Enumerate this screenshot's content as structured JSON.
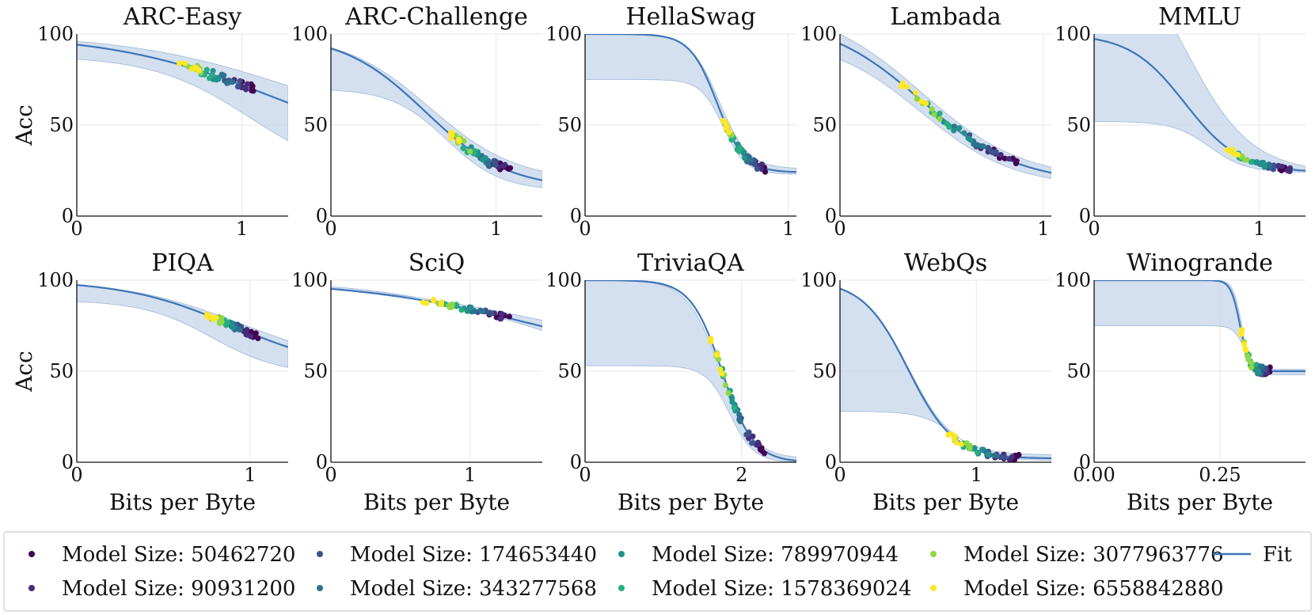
{
  "legend": {
    "entries": [
      {
        "label": "Model Size: 50462720",
        "color": "#440154"
      },
      {
        "label": "Model Size: 90931200",
        "color": "#472d7b"
      },
      {
        "label": "Model Size: 174653440",
        "color": "#3b528b"
      },
      {
        "label": "Model Size: 343277568",
        "color": "#2c728e"
      },
      {
        "label": "Model Size: 789970944",
        "color": "#21918c"
      },
      {
        "label": "Model Size: 1578369024",
        "color": "#27ad81"
      },
      {
        "label": "Model Size: 3077963776",
        "color": "#8fd744"
      },
      {
        "label": "Model Size: 6558842880",
        "color": "#fde725"
      }
    ],
    "fit_label": "Fit",
    "fit_color": "#3c75b8",
    "band_color": "#c6d5ea"
  },
  "chart_data": [
    {
      "type": "scatter",
      "title": "ARC-Easy",
      "xlabel": "",
      "ylabel": "Acc",
      "xlim": [
        0,
        1.28
      ],
      "ylim": [
        0,
        100
      ],
      "xticks": [
        {
          "v": 0,
          "label": "0"
        },
        {
          "v": 1,
          "label": "1"
        }
      ],
      "yticks": [
        0,
        50,
        100
      ],
      "fit": {
        "L": 30,
        "U": 100,
        "c": 1.2,
        "k": 2.0
      },
      "band": {
        "lower": {
          "L": 20,
          "U": 88,
          "c": 1.05,
          "k": 3.4
        },
        "upper": {
          "L": 42,
          "U": 100,
          "c": 1.3,
          "k": 2.0
        }
      },
      "points": {
        "x_range": [
          0.62,
          1.1
        ],
        "y_range": [
          84,
          52
        ],
        "spread": 2.5
      }
    },
    {
      "type": "scatter",
      "title": "ARC-Challenge",
      "xlabel": "",
      "ylabel": "",
      "xlim": [
        0,
        1.28
      ],
      "ylim": [
        0,
        100
      ],
      "xticks": [
        {
          "v": 0,
          "label": "0"
        },
        {
          "v": 1,
          "label": "1"
        }
      ],
      "yticks": [
        0,
        50,
        100
      ],
      "fit": {
        "L": 15,
        "U": 100,
        "c": 0.57,
        "k": 4.0
      },
      "band": {
        "lower": {
          "L": 14,
          "U": 70,
          "c": 0.7,
          "k": 6.0
        },
        "upper": {
          "L": 19,
          "U": 100,
          "c": 0.6,
          "k": 3.8
        }
      },
      "points": {
        "x_range": [
          0.7,
          1.12
        ],
        "y_range": [
          52,
          22
        ],
        "spread": 2.5
      }
    },
    {
      "type": "scatter",
      "title": "HellaSwag",
      "xlabel": "",
      "ylabel": "",
      "xlim": [
        0,
        1.04
      ],
      "ylim": [
        0,
        100
      ],
      "xticks": [
        {
          "v": 0,
          "label": "0"
        },
        {
          "v": 1,
          "label": "1"
        }
      ],
      "yticks": [
        0,
        50,
        100
      ],
      "fit": {
        "L": 24,
        "U": 100,
        "c": 0.65,
        "k": 15.0
      },
      "band": {
        "lower": {
          "L": 23,
          "U": 75,
          "c": 0.68,
          "k": 18.0
        },
        "upper": {
          "L": 26,
          "U": 100,
          "c": 0.66,
          "k": 14.0
        }
      },
      "points": {
        "x_range": [
          0.66,
          0.9
        ],
        "y_range": [
          58,
          30
        ],
        "spread": 2.0
      }
    },
    {
      "type": "scatter",
      "title": "Lambada",
      "xlabel": "",
      "ylabel": "",
      "xlim": [
        0,
        1.04
      ],
      "ylim": [
        0,
        100
      ],
      "xticks": [
        {
          "v": 0,
          "label": "0"
        },
        {
          "v": 1,
          "label": "1"
        }
      ],
      "yticks": [
        0,
        50,
        100
      ],
      "fit": {
        "L": 18,
        "U": 109,
        "c": 0.4,
        "k": 4.2
      },
      "band": {
        "lower": {
          "L": 16,
          "U": 98,
          "c": 0.4,
          "k": 4.4
        },
        "upper": {
          "L": 20,
          "U": 116,
          "c": 0.4,
          "k": 4.0
        }
      },
      "points": {
        "x_range": [
          0.3,
          0.9
        ],
        "y_range": [
          72,
          29
        ],
        "spread": 2.0
      }
    },
    {
      "type": "scatter",
      "title": "MMLU",
      "xlabel": "",
      "ylabel": "",
      "xlim": [
        0,
        1.28
      ],
      "ylim": [
        0,
        100
      ],
      "xticks": [
        {
          "v": 0,
          "label": "0"
        },
        {
          "v": 1,
          "label": "1"
        }
      ],
      "yticks": [
        0,
        50,
        100
      ],
      "fit": {
        "L": 24,
        "U": 100,
        "c": 0.55,
        "k": 6.0
      },
      "band": {
        "lower": {
          "L": 24,
          "U": 52,
          "c": 0.7,
          "k": 9.0
        },
        "upper": {
          "L": 24,
          "U": 160,
          "c": 0.55,
          "k": 5.0
        }
      },
      "points": {
        "x_range": [
          0.75,
          1.25
        ],
        "y_range": [
          40,
          26
        ],
        "spread": 1.3
      }
    },
    {
      "type": "scatter",
      "title": "PIQA",
      "xlabel": "Bits per Byte",
      "ylabel": "Acc",
      "xlim": [
        0,
        1.22
      ],
      "ylim": [
        0,
        100
      ],
      "xticks": [
        {
          "v": 0,
          "label": "0"
        },
        {
          "v": 1,
          "label": "1"
        }
      ],
      "yticks": [
        0,
        50,
        100
      ],
      "fit": {
        "L": 50,
        "U": 100,
        "c": 0.9,
        "k": 3.2
      },
      "band": {
        "lower": {
          "L": 48,
          "U": 89,
          "c": 0.78,
          "k": 5.0
        },
        "upper": {
          "L": 52,
          "U": 100,
          "c": 0.95,
          "k": 3.0
        }
      },
      "points": {
        "x_range": [
          0.73,
          1.05
        ],
        "y_range": [
          82,
          68
        ],
        "spread": 1.8
      }
    },
    {
      "type": "scatter",
      "title": "SciQ",
      "xlabel": "Bits per Byte",
      "ylabel": "",
      "xlim": [
        0,
        1.52
      ],
      "ylim": [
        0,
        100
      ],
      "xticks": [
        {
          "v": 0,
          "label": "0"
        },
        {
          "v": 1,
          "label": "1"
        }
      ],
      "yticks": [
        0,
        50,
        100
      ],
      "fit": {
        "L": 50,
        "U": 100,
        "c": 1.5,
        "k": 1.5
      },
      "band": {
        "lower": {
          "L": 48,
          "U": 100,
          "c": 1.45,
          "k": 1.8
        },
        "upper": {
          "L": 55,
          "U": 100,
          "c": 1.55,
          "k": 1.4
        }
      },
      "points": {
        "x_range": [
          0.65,
          1.3
        ],
        "y_range": [
          96,
          81
        ],
        "spread": 1.5
      }
    },
    {
      "type": "scatter",
      "title": "TriviaQA",
      "xlabel": "Bits per Byte",
      "ylabel": "",
      "xlim": [
        0,
        2.7
      ],
      "ylim": [
        0,
        100
      ],
      "xticks": [
        {
          "v": 0,
          "label": "0"
        },
        {
          "v": 2,
          "label": "2"
        }
      ],
      "yticks": [
        0,
        50,
        100
      ],
      "fit": {
        "L": 0,
        "U": 100,
        "c": 1.75,
        "k": 5.0
      },
      "band": {
        "lower": {
          "L": 0,
          "U": 53,
          "c": 1.85,
          "k": 6.5
        },
        "upper": {
          "L": 2,
          "U": 100,
          "c": 1.72,
          "k": 4.8
        }
      },
      "points": {
        "x_range": [
          1.6,
          2.3
        ],
        "y_range": [
          43,
          3
        ],
        "spread": 2.5
      }
    },
    {
      "type": "scatter",
      "title": "WebQs",
      "xlabel": "Bits per Byte",
      "ylabel": "",
      "xlim": [
        0,
        1.55
      ],
      "ylim": [
        0,
        100
      ],
      "xticks": [
        {
          "v": 0,
          "label": "0"
        },
        {
          "v": 1,
          "label": "1"
        }
      ],
      "yticks": [
        0,
        50,
        100
      ],
      "fit": {
        "L": 2,
        "U": 100,
        "c": 0.5,
        "k": 6.0
      },
      "band": {
        "lower": {
          "L": 1,
          "U": 28,
          "c": 0.85,
          "k": 8.0
        },
        "upper": {
          "L": 4,
          "U": 100,
          "c": 0.5,
          "k": 6.0
        }
      },
      "points": {
        "x_range": [
          0.75,
          1.35
        ],
        "y_range": [
          21,
          2
        ],
        "spread": 1.8
      }
    },
    {
      "type": "scatter",
      "title": "Winogrande",
      "xlabel": "Bits per Byte",
      "ylabel": "",
      "xlim": [
        0,
        0.42
      ],
      "ylim": [
        0,
        100
      ],
      "xticks": [
        {
          "v": 0,
          "label": "0.00"
        },
        {
          "v": 0.25,
          "label": "0.25"
        }
      ],
      "yticks": [
        0,
        50,
        100
      ],
      "fit": {
        "L": 50,
        "U": 100,
        "c": 0.29,
        "k": 110.0
      },
      "band": {
        "lower": {
          "L": 48,
          "U": 75,
          "c": 0.3,
          "k": 90.0
        },
        "upper": {
          "L": 51,
          "U": 100,
          "c": 0.293,
          "k": 120.0
        }
      },
      "points": {
        "x_range": [
          0.29,
          0.355
        ],
        "y_range": [
          70,
          51
        ],
        "spread": 2.5
      }
    }
  ]
}
